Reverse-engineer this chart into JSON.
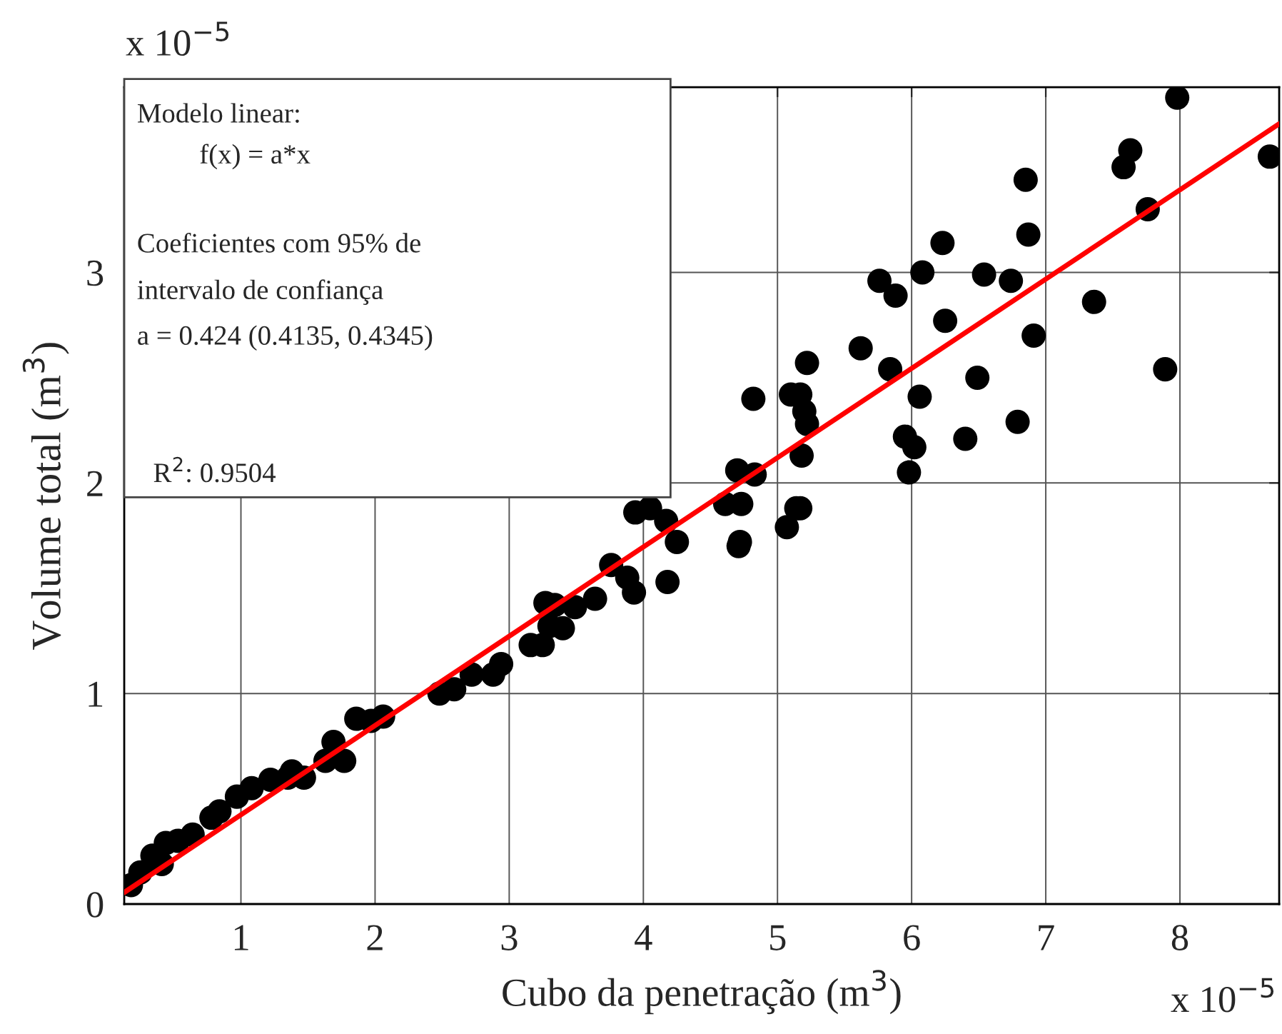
{
  "chart_data": {
    "type": "scatter",
    "xlabel": "Cubo da penetração (m$^{3}$)",
    "ylabel": "Volume total (m$^{3}$)",
    "xlim": [
      0.13,
      8.74
    ],
    "ylim": [
      0,
      3.88
    ],
    "xticks": [
      1,
      2,
      3,
      4,
      5,
      6,
      7,
      8
    ],
    "yticks": [
      0,
      1,
      2,
      3
    ],
    "grid": true,
    "marker": "circle",
    "annotations": [
      "Modelo linear:",
      "f(x) = a*x",
      "Coeficientes com 95% de",
      "intervalo de confiança",
      "a = 0.424 (0.4135, 0.4345)",
      "R$^{2}$: 0.9504",
      "x 10$^{−5}$",
      "x 10$^{−5}$"
    ],
    "series": [
      {
        "color": "#000000",
        "x": [
          7.98,
          8.67,
          7.63,
          7.58,
          7.76,
          6.85,
          6.87,
          6.23,
          6.08,
          6.54,
          6.74,
          5.76,
          5.88,
          7.36,
          6.25,
          6.91,
          5.62,
          5.22,
          5.84,
          7.89,
          6.49,
          5.17,
          5.2,
          5.22,
          6.06,
          6.79,
          5.95,
          6.02,
          6.4,
          5.18,
          5.98,
          5.17,
          4.82,
          5.1,
          4.7,
          4.83,
          4.61,
          4.73,
          5.14,
          5.07,
          4.72,
          4.71,
          3.94,
          4.05,
          4.17,
          4.25,
          4.18,
          3.76,
          3.88,
          3.93,
          3.64,
          3.49,
          3.34,
          3.27,
          3.4,
          3.3,
          3.25,
          3.16,
          2.94,
          2.88,
          2.72,
          2.59,
          2.48,
          2.06,
          1.86,
          1.97,
          1.69,
          1.77,
          1.63,
          1.47,
          1.38,
          1.35,
          1.22,
          1.08,
          0.97,
          0.84,
          0.78,
          0.64,
          0.53,
          0.44,
          0.41,
          0.34,
          0.25,
          0.18
        ],
        "values": [
          3.83,
          3.55,
          3.58,
          3.5,
          3.3,
          3.44,
          3.18,
          3.14,
          3.0,
          2.99,
          2.96,
          2.96,
          2.89,
          2.86,
          2.77,
          2.7,
          2.64,
          2.57,
          2.54,
          2.54,
          2.5,
          2.42,
          2.34,
          2.28,
          2.41,
          2.29,
          2.22,
          2.17,
          2.21,
          2.13,
          2.05,
          1.88,
          2.4,
          2.42,
          2.06,
          2.04,
          1.9,
          1.9,
          1.88,
          1.79,
          1.72,
          1.7,
          1.86,
          1.88,
          1.82,
          1.72,
          1.53,
          1.61,
          1.55,
          1.48,
          1.45,
          1.41,
          1.42,
          1.43,
          1.31,
          1.32,
          1.23,
          1.23,
          1.14,
          1.09,
          1.09,
          1.02,
          1.0,
          0.89,
          0.88,
          0.87,
          0.77,
          0.68,
          0.68,
          0.6,
          0.63,
          0.6,
          0.59,
          0.55,
          0.51,
          0.44,
          0.41,
          0.33,
          0.3,
          0.29,
          0.19,
          0.23,
          0.15,
          0.09
        ]
      },
      {
        "type": "line",
        "color": "#ff0000",
        "marker": "none",
        "line_style": "solid",
        "x": [
          0.13,
          8.74
        ],
        "values": [
          0.055,
          3.706
        ]
      }
    ]
  }
}
